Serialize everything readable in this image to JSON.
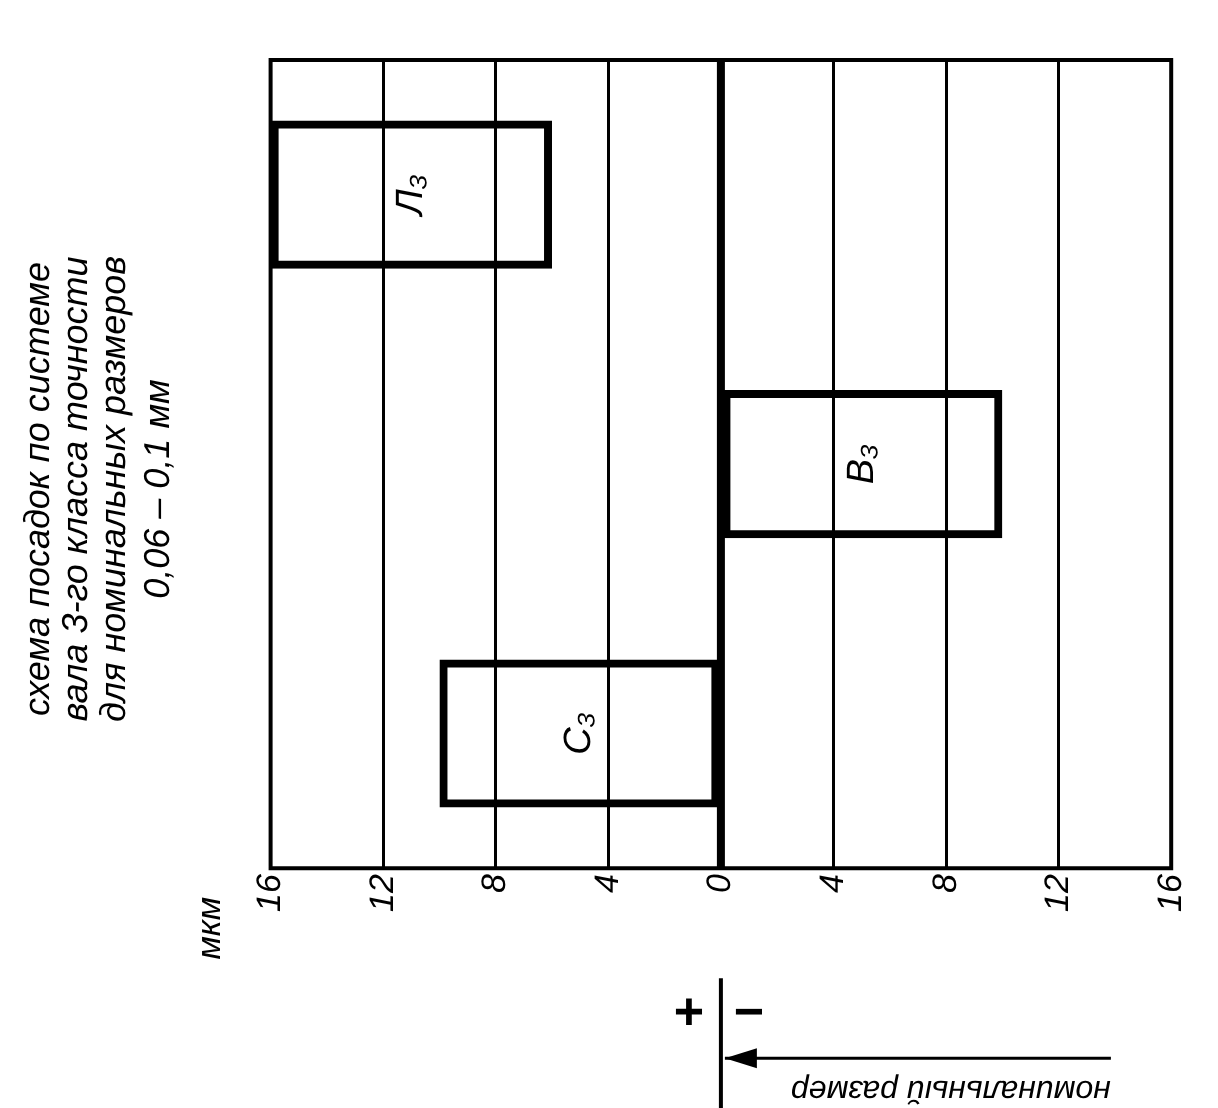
{
  "chart_data": {
    "type": "bar",
    "orientation": "horizontal",
    "title": [
      "схема посадок по системе",
      "вала 3-го класса точности",
      "для номинальных размеров"
    ],
    "subtitle": "0,06 – 0,1 мм",
    "categories": [
      "Л₃",
      "В₃",
      "С₃"
    ],
    "values": [
      10,
      -10,
      10
    ],
    "base": [
      6,
      0,
      0
    ],
    "color": "#000000",
    "xlim": [
      16,
      -16
    ],
    "xticks": [
      16,
      12,
      8,
      4,
      0,
      {
        "value": -4,
        "label": "4"
      },
      {
        "value": -8,
        "label": "8"
      },
      {
        "value": -12,
        "label": "12"
      },
      {
        "value": -16,
        "label": "16"
      }
    ],
    "grid": "x",
    "ref_lines": [
      {
        "axis": "x",
        "value": 0,
        "label": "номинальный размер"
      }
    ],
    "annotations": [
      "мкм",
      "+",
      "−"
    ]
  }
}
